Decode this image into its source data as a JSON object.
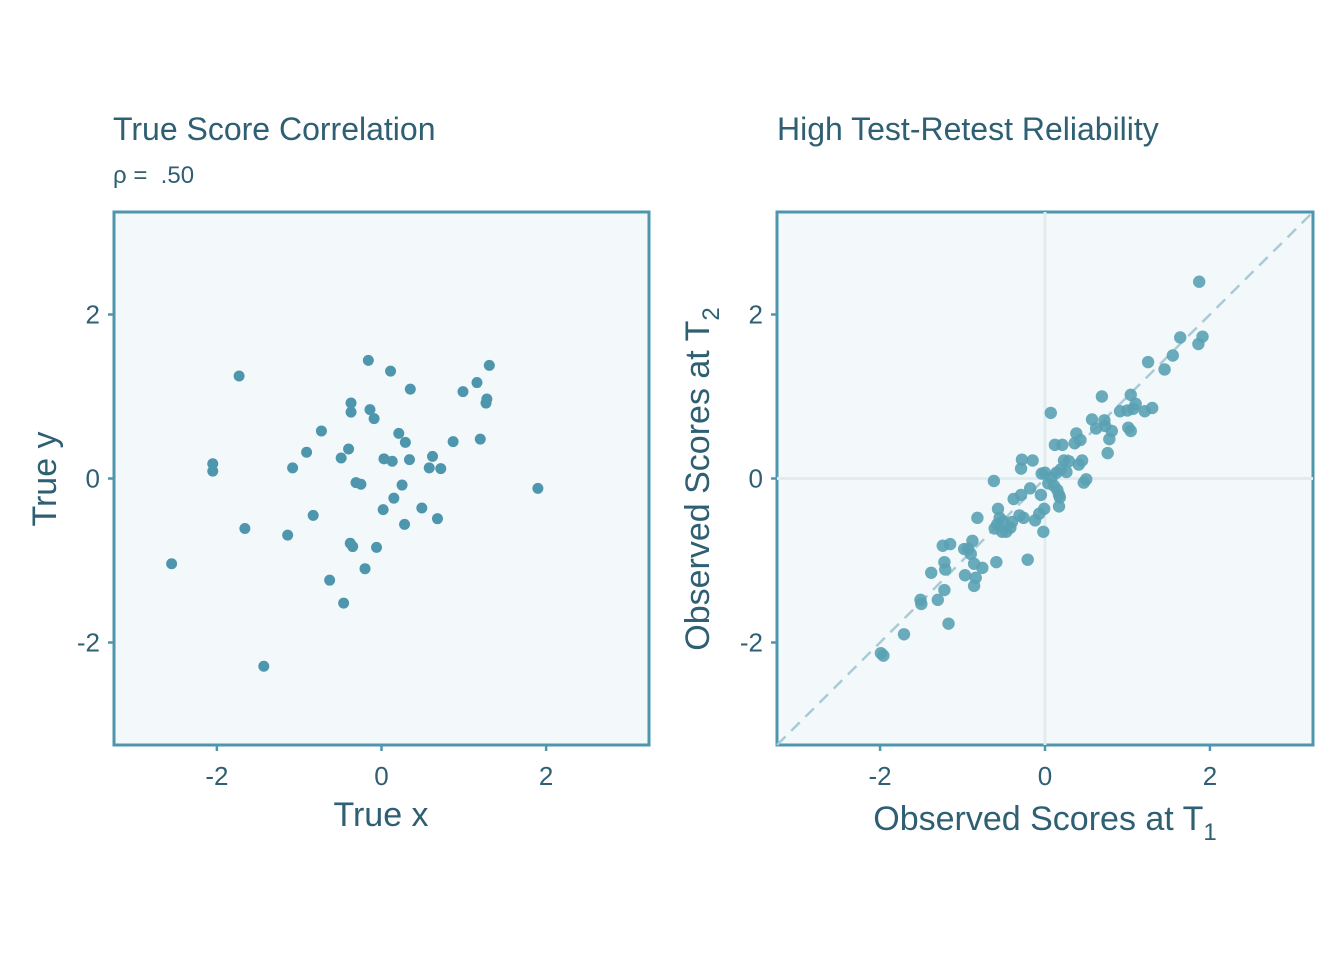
{
  "chart_data": [
    {
      "type": "scatter",
      "title": "True Score Correlation",
      "subtitle": "ρ =  .50",
      "xlabel": "True x",
      "ylabel": "True y",
      "xlim": [
        -3.25,
        3.25
      ],
      "ylim": [
        -3.25,
        3.25
      ],
      "xticks": [
        "-2",
        "0",
        "2"
      ],
      "yticks": [
        "-2",
        "0",
        "2"
      ],
      "point_color": "#4e96ad",
      "points": [
        [
          -2.55,
          -1.04
        ],
        [
          -2.05,
          0.18
        ],
        [
          -2.05,
          0.09
        ],
        [
          -1.73,
          1.25
        ],
        [
          -1.66,
          -0.61
        ],
        [
          -1.43,
          -2.29
        ],
        [
          -1.14,
          -0.69
        ],
        [
          -1.08,
          0.13
        ],
        [
          -0.91,
          0.32
        ],
        [
          -0.83,
          -0.45
        ],
        [
          -0.73,
          0.58
        ],
        [
          -0.63,
          -1.24
        ],
        [
          -0.49,
          0.25
        ],
        [
          -0.46,
          -1.52
        ],
        [
          -0.4,
          0.36
        ],
        [
          -0.38,
          -0.79
        ],
        [
          -0.37,
          0.81
        ],
        [
          -0.37,
          0.92
        ],
        [
          -0.35,
          -0.83
        ],
        [
          -0.31,
          -0.05
        ],
        [
          -0.25,
          -0.07
        ],
        [
          -0.2,
          -1.1
        ],
        [
          -0.16,
          1.44
        ],
        [
          -0.14,
          0.84
        ],
        [
          -0.09,
          0.73
        ],
        [
          -0.06,
          -0.84
        ],
        [
          0.02,
          -0.38
        ],
        [
          0.03,
          0.24
        ],
        [
          0.11,
          1.31
        ],
        [
          0.13,
          0.21
        ],
        [
          0.15,
          -0.24
        ],
        [
          0.21,
          0.55
        ],
        [
          0.25,
          -0.08
        ],
        [
          0.28,
          -0.56
        ],
        [
          0.29,
          0.44
        ],
        [
          0.34,
          0.23
        ],
        [
          0.35,
          1.09
        ],
        [
          0.49,
          -0.36
        ],
        [
          0.58,
          0.13
        ],
        [
          0.62,
          0.27
        ],
        [
          0.68,
          -0.49
        ],
        [
          0.72,
          0.12
        ],
        [
          0.87,
          0.45
        ],
        [
          0.99,
          1.06
        ],
        [
          1.16,
          1.17
        ],
        [
          1.2,
          0.48
        ],
        [
          1.27,
          0.92
        ],
        [
          1.28,
          0.97
        ],
        [
          1.31,
          1.38
        ],
        [
          1.9,
          -0.12
        ]
      ]
    },
    {
      "type": "scatter",
      "title": "High Test-Retest Reliability",
      "subtitle": "",
      "xlabel": "Observed Scores at T",
      "xlabel_sub": "1",
      "ylabel": "Observed Scores at T",
      "ylabel_sub": "2",
      "xlim": [
        -3.25,
        3.25
      ],
      "ylim": [
        -3.25,
        3.25
      ],
      "xticks": [
        "-2",
        "0",
        "2"
      ],
      "yticks": [
        "-2",
        "0",
        "2"
      ],
      "point_color": "#5aa1b4",
      "reference_line": "y = x (dashed)",
      "zero_lines": true,
      "points": [
        [
          -1.99,
          -2.13
        ],
        [
          -1.96,
          -2.16
        ],
        [
          -1.71,
          -1.9
        ],
        [
          -1.51,
          -1.48
        ],
        [
          -1.5,
          -1.53
        ],
        [
          -1.38,
          -1.15
        ],
        [
          -1.3,
          -1.48
        ],
        [
          -1.24,
          -0.82
        ],
        [
          -1.22,
          -1.36
        ],
        [
          -1.22,
          -1.02
        ],
        [
          -1.21,
          -1.11
        ],
        [
          -1.17,
          -1.77
        ],
        [
          -1.15,
          -0.8
        ],
        [
          -0.98,
          -0.86
        ],
        [
          -0.97,
          -1.18
        ],
        [
          -0.93,
          -0.86
        ],
        [
          -0.9,
          -0.92
        ],
        [
          -0.88,
          -0.76
        ],
        [
          -0.86,
          -1.04
        ],
        [
          -0.86,
          -1.31
        ],
        [
          -0.84,
          -1.21
        ],
        [
          -0.82,
          -0.48
        ],
        [
          -0.76,
          -1.09
        ],
        [
          -0.62,
          -0.03
        ],
        [
          -0.61,
          -0.61
        ],
        [
          -0.59,
          -1.02
        ],
        [
          -0.58,
          -0.56
        ],
        [
          -0.57,
          -0.37
        ],
        [
          -0.55,
          -0.48
        ],
        [
          -0.52,
          -0.65
        ],
        [
          -0.51,
          -0.52
        ],
        [
          -0.47,
          -0.65
        ],
        [
          -0.42,
          -0.6
        ],
        [
          -0.4,
          -0.53
        ],
        [
          -0.38,
          -0.25
        ],
        [
          -0.31,
          -0.45
        ],
        [
          -0.29,
          -0.2
        ],
        [
          -0.29,
          0.12
        ],
        [
          -0.28,
          0.23
        ],
        [
          -0.26,
          -0.48
        ],
        [
          -0.21,
          -0.99
        ],
        [
          -0.18,
          -0.12
        ],
        [
          -0.15,
          0.22
        ],
        [
          -0.12,
          -0.51
        ],
        [
          -0.07,
          -0.43
        ],
        [
          -0.05,
          -0.2
        ],
        [
          -0.04,
          0.06
        ],
        [
          -0.02,
          -0.65
        ],
        [
          -0.01,
          -0.37
        ],
        [
          0.0,
          0.07
        ],
        [
          0.04,
          -0.06
        ],
        [
          0.07,
          0.8
        ],
        [
          0.08,
          0.01
        ],
        [
          0.11,
          -0.09
        ],
        [
          0.12,
          0.41
        ],
        [
          0.14,
          0.07
        ],
        [
          0.15,
          -0.14
        ],
        [
          0.17,
          -0.2
        ],
        [
          0.17,
          -0.34
        ],
        [
          0.18,
          -0.23
        ],
        [
          0.19,
          0.11
        ],
        [
          0.21,
          0.41
        ],
        [
          0.23,
          0.22
        ],
        [
          0.26,
          0.08
        ],
        [
          0.29,
          0.21
        ],
        [
          0.36,
          0.43
        ],
        [
          0.38,
          0.55
        ],
        [
          0.41,
          0.17
        ],
        [
          0.43,
          0.47
        ],
        [
          0.45,
          0.22
        ],
        [
          0.47,
          -0.05
        ],
        [
          0.5,
          -0.01
        ],
        [
          0.57,
          0.72
        ],
        [
          0.62,
          0.61
        ],
        [
          0.69,
          1.0
        ],
        [
          0.72,
          0.71
        ],
        [
          0.73,
          0.64
        ],
        [
          0.76,
          0.31
        ],
        [
          0.78,
          0.48
        ],
        [
          0.81,
          0.58
        ],
        [
          0.91,
          0.82
        ],
        [
          1.0,
          0.83
        ],
        [
          1.01,
          0.62
        ],
        [
          1.04,
          1.02
        ],
        [
          1.04,
          0.58
        ],
        [
          1.07,
          0.85
        ],
        [
          1.1,
          0.91
        ],
        [
          1.21,
          0.82
        ],
        [
          1.25,
          1.42
        ],
        [
          1.3,
          0.86
        ],
        [
          1.45,
          1.33
        ],
        [
          1.55,
          1.5
        ],
        [
          1.64,
          1.72
        ],
        [
          1.86,
          1.64
        ],
        [
          1.87,
          2.4
        ],
        [
          1.91,
          1.73
        ]
      ]
    }
  ]
}
